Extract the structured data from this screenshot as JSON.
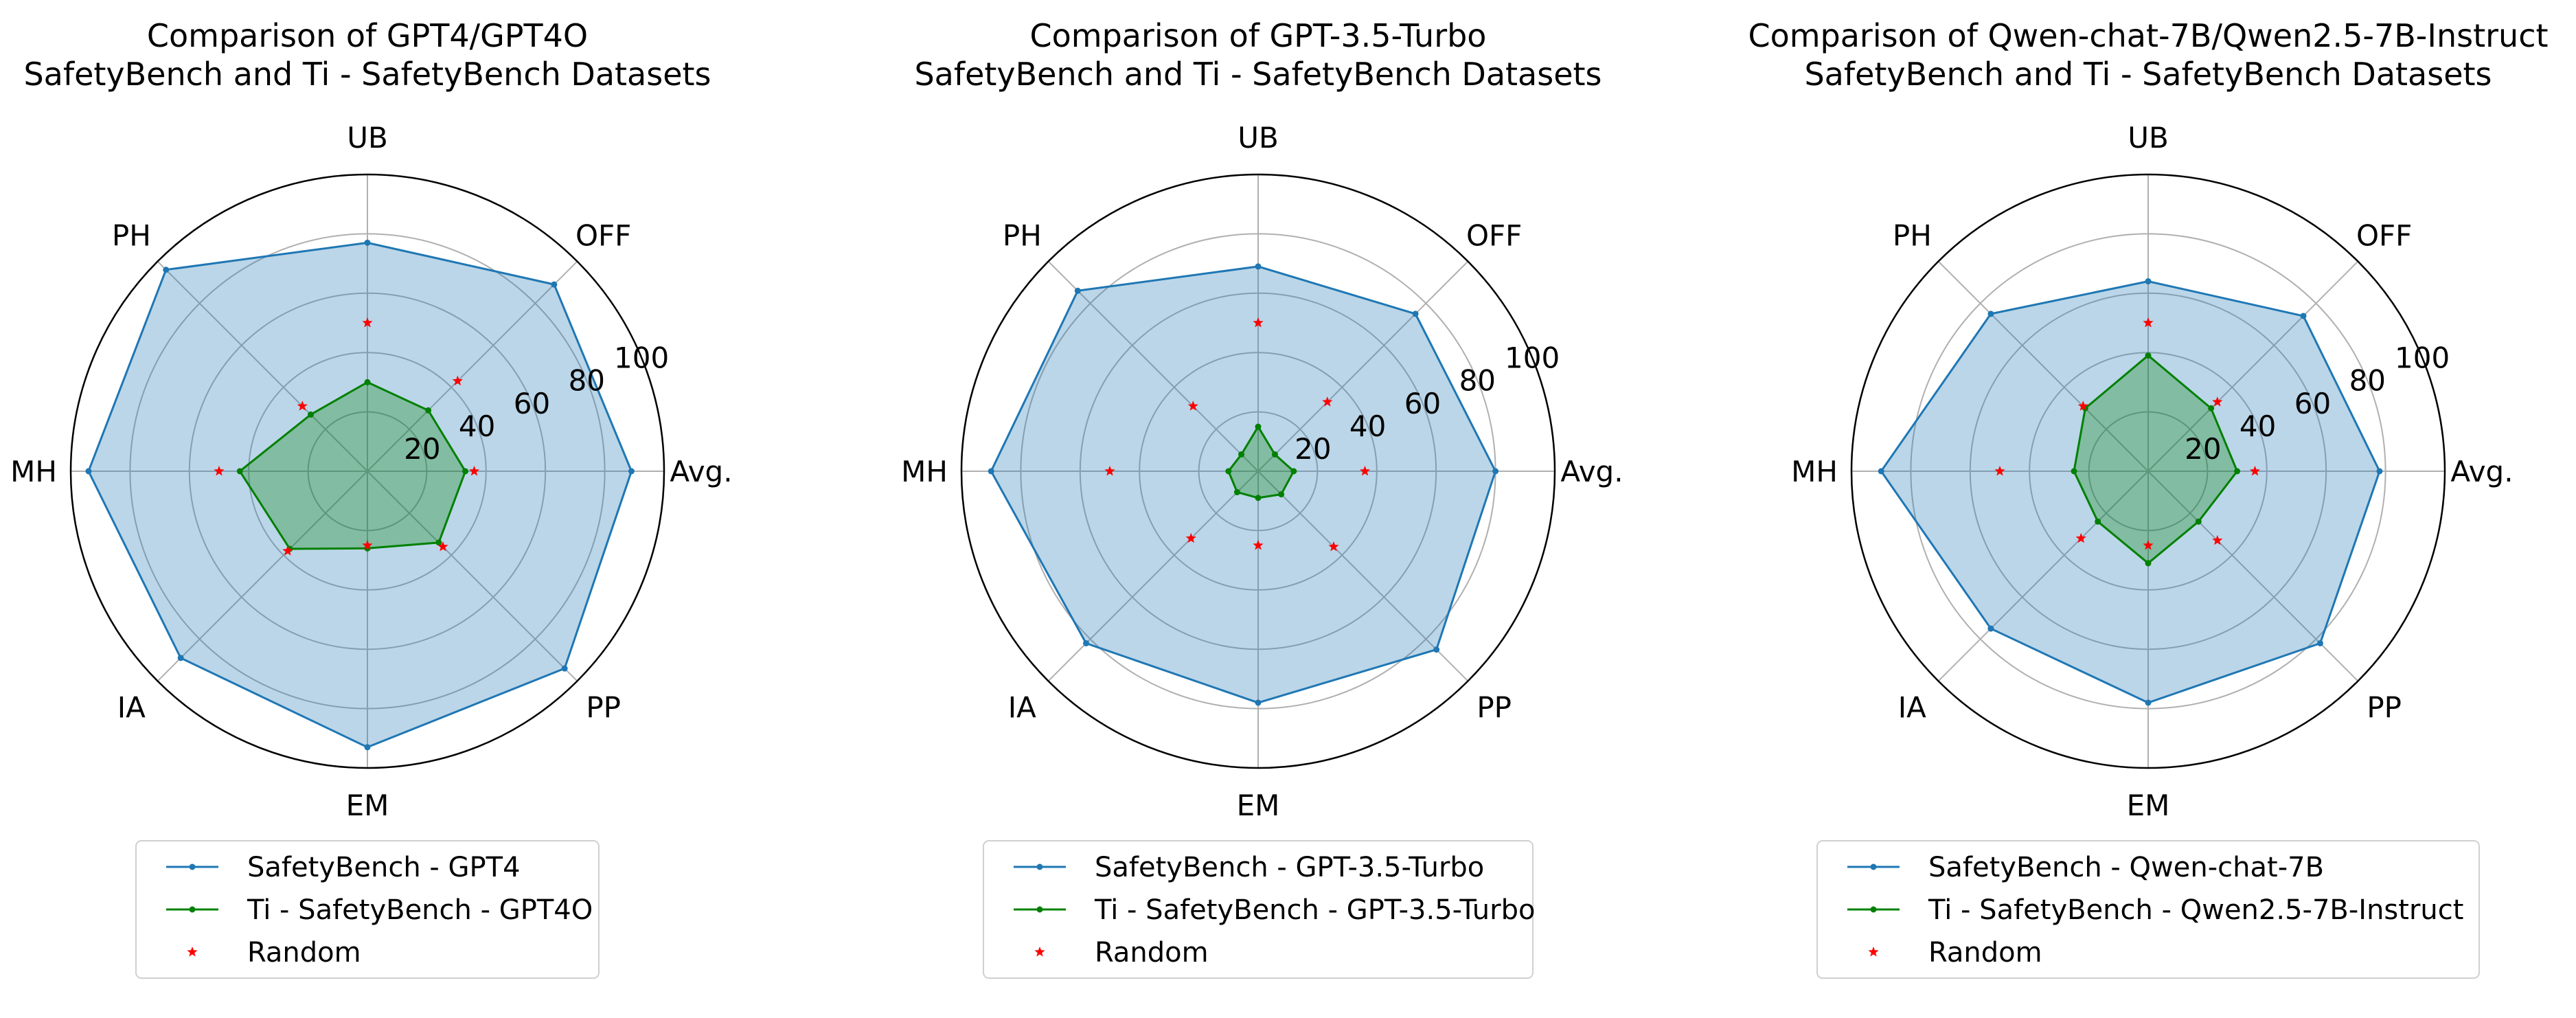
{
  "chart_data": [
    {
      "type": "radar",
      "title_lines": [
        "Comparison of GPT4/GPT4O",
        "SafetyBench and Ti - SafetyBench Datasets"
      ],
      "axes": [
        "Avg.",
        "OFF",
        "UB",
        "PH",
        "MH",
        "IA",
        "EM",
        "PP"
      ],
      "radial_ticks": [
        20,
        40,
        60,
        80,
        100
      ],
      "rlim": [
        0,
        100
      ],
      "grid": true,
      "legend_position": "bottom",
      "series": [
        {
          "name": "SafetyBench - GPT4",
          "color": "#1f77b4",
          "filled": true,
          "values": [
            89,
            89,
            77,
            96,
            94,
            89,
            93,
            94
          ]
        },
        {
          "name": "Ti - SafetyBench - GPT4O",
          "color": "#008000",
          "filled": true,
          "values": [
            33,
            29,
            30,
            27,
            43,
            37,
            26,
            34
          ]
        },
        {
          "name": "Random",
          "color": "#ff0000",
          "marker": "star",
          "filled": false,
          "values": [
            36,
            43,
            50,
            31,
            50,
            38,
            25,
            36
          ]
        }
      ]
    },
    {
      "type": "radar",
      "title_lines": [
        "Comparison of GPT-3.5-Turbo",
        "SafetyBench and Ti - SafetyBench Datasets"
      ],
      "axes": [
        "Avg.",
        "OFF",
        "UB",
        "PH",
        "MH",
        "IA",
        "EM",
        "PP"
      ],
      "radial_ticks": [
        20,
        40,
        60,
        80,
        100
      ],
      "rlim": [
        0,
        100
      ],
      "grid": true,
      "legend_position": "bottom",
      "series": [
        {
          "name": "SafetyBench - GPT-3.5-Turbo",
          "color": "#1f77b4",
          "filled": true,
          "values": [
            80,
            75,
            69,
            86,
            90,
            82,
            78,
            85
          ]
        },
        {
          "name": "Ti - SafetyBench - GPT-3.5-Turbo",
          "color": "#008000",
          "filled": true,
          "values": [
            12,
            8,
            15,
            8,
            10,
            10,
            9,
            11
          ]
        },
        {
          "name": "Random",
          "color": "#ff0000",
          "marker": "star",
          "filled": false,
          "values": [
            36,
            33,
            50,
            31,
            50,
            32,
            25,
            36
          ]
        }
      ]
    },
    {
      "type": "radar",
      "title_lines": [
        "Comparison of Qwen-chat-7B/Qwen2.5-7B-Instruct",
        "SafetyBench and Ti - SafetyBench Datasets"
      ],
      "axes": [
        "Avg.",
        "OFF",
        "UB",
        "PH",
        "MH",
        "IA",
        "EM",
        "PP"
      ],
      "radial_ticks": [
        20,
        40,
        60,
        80,
        100
      ],
      "rlim": [
        0,
        100
      ],
      "grid": true,
      "legend_position": "bottom",
      "series": [
        {
          "name": "SafetyBench - Qwen-chat-7B",
          "color": "#1f77b4",
          "filled": true,
          "values": [
            78,
            74,
            64,
            75,
            90,
            75,
            78,
            82
          ]
        },
        {
          "name": "Ti - SafetyBench - Qwen2.5-7B-Instruct",
          "color": "#008000",
          "filled": true,
          "values": [
            30,
            30,
            39,
            30,
            25,
            24,
            31,
            24
          ]
        },
        {
          "name": "Random",
          "color": "#ff0000",
          "marker": "star",
          "filled": false,
          "values": [
            36,
            33,
            50,
            31,
            50,
            32,
            25,
            33
          ]
        }
      ]
    }
  ]
}
